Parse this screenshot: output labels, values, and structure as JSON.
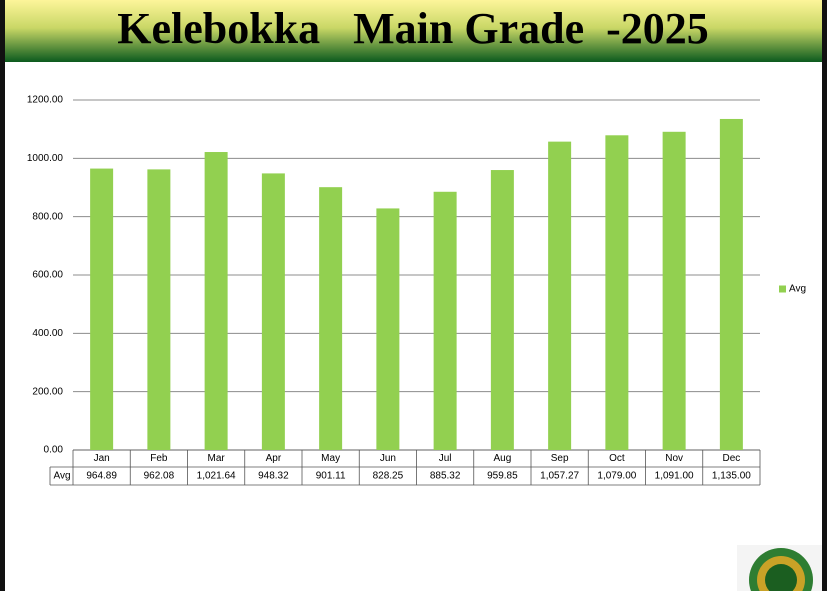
{
  "chart_data": {
    "type": "bar",
    "title": "Kelebokka   Main Grade  -2025",
    "categories": [
      "Jan",
      "Feb",
      "Mar",
      "Apr",
      "May",
      "Jun",
      "Jul",
      "Aug",
      "Sep",
      "Oct",
      "Nov",
      "Dec"
    ],
    "series": [
      {
        "name": "Avg",
        "color": "#92d050",
        "values": [
          964.89,
          962.08,
          1021.64,
          948.32,
          901.11,
          828.25,
          885.32,
          959.85,
          1057.27,
          1079.0,
          1091.0,
          1135.0
        ],
        "value_labels": [
          "964.89",
          "962.08",
          "1,021.64",
          "948.32",
          "901.11",
          "828.25",
          "885.32",
          "959.85",
          "1,057.27",
          "1,079.00",
          "1,091.00",
          "1,135.00"
        ]
      }
    ],
    "ylim": [
      0,
      1200
    ],
    "yticks": [
      {
        "value": 0,
        "label": "0.00"
      },
      {
        "value": 200,
        "label": "200.00"
      },
      {
        "value": 400,
        "label": "400.00"
      },
      {
        "value": 600,
        "label": "600.00"
      },
      {
        "value": 800,
        "label": "800.00"
      },
      {
        "value": 1000,
        "label": "1000.00"
      },
      {
        "value": 1200,
        "label": "1200.00"
      }
    ],
    "grid": true,
    "legend": "right"
  }
}
